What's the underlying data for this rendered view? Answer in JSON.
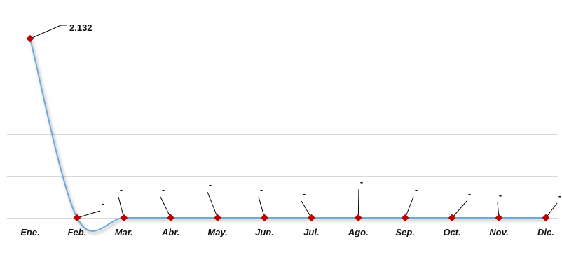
{
  "chart_data": {
    "type": "line",
    "categories": [
      "Ene.",
      "Feb.",
      "Mar.",
      "Abr.",
      "May.",
      "Jun.",
      "Jul.",
      "Ago.",
      "Sep.",
      "Oct.",
      "Nov.",
      "Dic."
    ],
    "series": [
      {
        "values": [
          2132,
          0,
          0,
          0,
          0,
          0,
          0,
          0,
          0,
          0,
          0,
          0
        ],
        "data_labels": [
          "2,132",
          "-",
          "-",
          "-",
          "-",
          "-",
          "-",
          "-",
          "-",
          "-",
          "-",
          "-"
        ]
      }
    ],
    "title": "",
    "xlabel": "",
    "ylabel": "",
    "ylim": [
      0,
      2500
    ],
    "y_gridlines": [
      0,
      500,
      1000,
      1500,
      2000,
      2500
    ],
    "grid": true,
    "y_tick_labels_shown": false,
    "smoothed": true,
    "legend": "none",
    "colors": {
      "line": "#6fa8dc",
      "marker": "#c00000",
      "grid": "#d9d9d9",
      "leader": "#000000"
    }
  }
}
